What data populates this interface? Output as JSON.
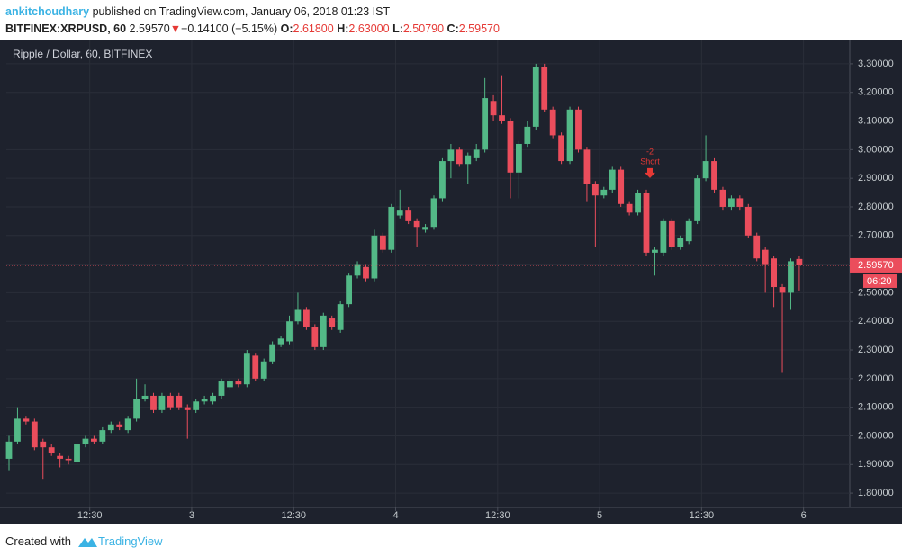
{
  "header": {
    "author": "ankitchoudhary",
    "published": "published on TradingView.com, January 06, 2018 01:23 IST",
    "symbol": "BITFINEX:XRPUSD, 60",
    "price": "2.59570",
    "change": "−0.14100 (−5.15%)",
    "o_label": "O:",
    "o": "2.61800",
    "h_label": "H:",
    "h": "2.63000",
    "l_label": "L:",
    "l": "2.50790",
    "c_label": "C:",
    "c": "2.59570"
  },
  "chart_data": {
    "type": "candlestick",
    "title": "Ripple / Dollar, 60, BITFINEX",
    "categories": [
      null,
      null,
      null,
      null,
      null,
      null,
      null,
      null,
      null,
      null,
      null,
      null,
      null,
      null,
      null,
      null,
      null,
      null,
      null,
      null,
      null,
      null,
      null,
      null,
      null,
      null,
      null,
      null,
      null,
      null,
      null,
      null,
      null,
      null,
      null,
      null,
      null,
      null,
      null,
      null,
      null,
      null,
      null,
      null,
      null,
      null,
      null,
      null,
      null,
      null,
      null,
      null,
      null,
      null,
      null,
      null,
      null,
      null,
      null,
      null,
      null,
      null,
      null,
      null,
      null,
      null,
      null,
      null,
      null,
      null,
      null,
      null,
      null,
      null,
      null,
      null,
      null,
      null,
      null,
      null,
      null,
      null,
      null,
      null,
      null,
      null,
      null,
      null,
      null,
      null,
      null,
      null,
      null,
      null
    ],
    "open": [
      1.92,
      1.98,
      2.06,
      2.05,
      1.98,
      1.96,
      1.93,
      1.92,
      1.91,
      1.97,
      1.99,
      1.98,
      2.02,
      2.04,
      2.02,
      2.06,
      2.13,
      2.14,
      2.09,
      2.14,
      2.14,
      2.1,
      2.09,
      2.12,
      2.12,
      2.14,
      2.17,
      2.19,
      2.18,
      2.28,
      2.2,
      2.26,
      2.32,
      2.33,
      2.4,
      2.44,
      2.38,
      2.31,
      2.41,
      2.37,
      2.46,
      2.56,
      2.59,
      2.55,
      2.7,
      2.65,
      2.77,
      2.79,
      2.75,
      2.72,
      2.73,
      2.83,
      2.96,
      3.0,
      2.95,
      2.97,
      3.0,
      3.17,
      3.12,
      3.1,
      2.92,
      3.02,
      3.08,
      3.29,
      3.14,
      3.05,
      2.96,
      3.14,
      3.0,
      2.88,
      2.84,
      2.86,
      2.93,
      2.81,
      2.78,
      2.85,
      2.64,
      2.64,
      2.75,
      2.66,
      2.68,
      2.75,
      2.9,
      2.96,
      2.86,
      2.8,
      2.83,
      2.8,
      2.7,
      2.65,
      2.62,
      2.52,
      2.5,
      2.618
    ],
    "high": [
      2.0,
      2.1,
      2.07,
      2.06,
      1.99,
      1.97,
      1.94,
      1.93,
      1.98,
      2.0,
      2.0,
      2.03,
      2.05,
      2.05,
      2.07,
      2.2,
      2.18,
      2.15,
      2.15,
      2.15,
      2.15,
      2.11,
      2.13,
      2.14,
      2.15,
      2.2,
      2.2,
      2.2,
      2.3,
      2.29,
      2.27,
      2.33,
      2.35,
      2.42,
      2.5,
      2.45,
      2.39,
      2.43,
      2.42,
      2.47,
      2.57,
      2.61,
      2.6,
      2.72,
      2.71,
      2.81,
      2.86,
      2.8,
      2.76,
      2.74,
      2.84,
      2.97,
      3.02,
      3.01,
      2.99,
      3.02,
      3.25,
      3.19,
      3.26,
      3.11,
      3.03,
      3.1,
      3.3,
      3.3,
      3.15,
      3.06,
      3.15,
      3.15,
      3.01,
      2.89,
      2.87,
      2.94,
      2.94,
      2.82,
      2.86,
      2.86,
      2.66,
      2.76,
      2.76,
      2.7,
      2.76,
      2.91,
      3.05,
      2.97,
      2.87,
      2.84,
      2.84,
      2.81,
      2.71,
      2.66,
      2.63,
      2.53,
      2.62,
      2.63
    ],
    "low": [
      1.88,
      1.97,
      2.04,
      1.95,
      1.85,
      1.93,
      1.89,
      1.9,
      1.9,
      1.96,
      1.97,
      1.97,
      2.01,
      2.02,
      2.01,
      2.05,
      2.12,
      2.08,
      2.08,
      2.09,
      2.09,
      1.99,
      2.08,
      2.11,
      2.11,
      2.13,
      2.16,
      2.17,
      2.17,
      2.19,
      2.19,
      2.25,
      2.31,
      2.32,
      2.39,
      2.37,
      2.3,
      2.3,
      2.37,
      2.36,
      2.45,
      2.55,
      2.54,
      2.54,
      2.64,
      2.64,
      2.76,
      2.74,
      2.66,
      2.71,
      2.72,
      2.82,
      2.9,
      2.94,
      2.88,
      2.96,
      2.99,
      3.1,
      3.09,
      2.83,
      2.83,
      3.01,
      3.07,
      3.13,
      3.04,
      2.95,
      2.95,
      2.99,
      2.82,
      2.66,
      2.83,
      2.85,
      2.8,
      2.77,
      2.77,
      2.63,
      2.56,
      2.63,
      2.65,
      2.65,
      2.67,
      2.74,
      2.89,
      2.85,
      2.79,
      2.79,
      2.79,
      2.69,
      2.61,
      2.5,
      2.45,
      2.22,
      2.44,
      2.5079
    ],
    "close": [
      1.98,
      2.06,
      2.05,
      1.96,
      1.96,
      1.94,
      1.92,
      1.915,
      1.97,
      1.99,
      1.98,
      2.02,
      2.04,
      2.03,
      2.06,
      2.13,
      2.14,
      2.09,
      2.14,
      2.1,
      2.1,
      2.09,
      2.12,
      2.13,
      2.14,
      2.19,
      2.19,
      2.18,
      2.29,
      2.2,
      2.26,
      2.32,
      2.34,
      2.4,
      2.44,
      2.38,
      2.31,
      2.42,
      2.38,
      2.46,
      2.56,
      2.6,
      2.55,
      2.7,
      2.65,
      2.8,
      2.79,
      2.75,
      2.73,
      2.73,
      2.83,
      2.96,
      3.0,
      2.95,
      2.98,
      3.0,
      3.18,
      3.12,
      3.1,
      2.92,
      3.02,
      3.08,
      3.29,
      3.14,
      3.05,
      2.96,
      3.14,
      3.0,
      2.88,
      2.84,
      2.86,
      2.93,
      2.81,
      2.78,
      2.85,
      2.64,
      2.65,
      2.75,
      2.66,
      2.69,
      2.75,
      2.9,
      2.96,
      2.86,
      2.8,
      2.83,
      2.8,
      2.7,
      2.62,
      2.6,
      2.52,
      2.5,
      2.61,
      2.5957
    ],
    "up_color": "#53b987",
    "down_color": "#eb4d5c",
    "ylim": [
      1.75,
      3.35
    ],
    "yticks": [
      {
        "value": 1.8,
        "label": "1.80000"
      },
      {
        "value": 1.9,
        "label": "1.90000"
      },
      {
        "value": 2.0,
        "label": "2.00000"
      },
      {
        "value": 2.1,
        "label": "2.10000"
      },
      {
        "value": 2.2,
        "label": "2.20000"
      },
      {
        "value": 2.3,
        "label": "2.30000"
      },
      {
        "value": 2.4,
        "label": "2.40000"
      },
      {
        "value": 2.5,
        "label": "2.50000"
      },
      {
        "value": 2.6,
        "label": "2.60000"
      },
      {
        "value": 2.7,
        "label": "2.70000"
      },
      {
        "value": 2.8,
        "label": "2.80000"
      },
      {
        "value": 2.9,
        "label": "2.90000"
      },
      {
        "value": 3.0,
        "label": "3.00000"
      },
      {
        "value": 3.1,
        "label": "3.10000"
      },
      {
        "value": 3.2,
        "label": "3.20000"
      },
      {
        "value": 3.3,
        "label": "3.30000"
      }
    ],
    "xticks": [
      {
        "value": 9.5,
        "label": "12:30"
      },
      {
        "value": 21.5,
        "label": "3"
      },
      {
        "value": 33.5,
        "label": "12:30"
      },
      {
        "value": 45.5,
        "label": "4"
      },
      {
        "value": 57.5,
        "label": "12:30"
      },
      {
        "value": 69.5,
        "label": "5"
      },
      {
        "value": 81.5,
        "label": "12:30"
      },
      {
        "value": 93.5,
        "label": "6"
      }
    ],
    "grid": true,
    "price_label": "2.59570",
    "countdown": "06:20",
    "annotation": {
      "index": 75,
      "count": "-2",
      "text": "Short"
    }
  },
  "footer": {
    "created": "Created with",
    "brand": "TradingView"
  }
}
